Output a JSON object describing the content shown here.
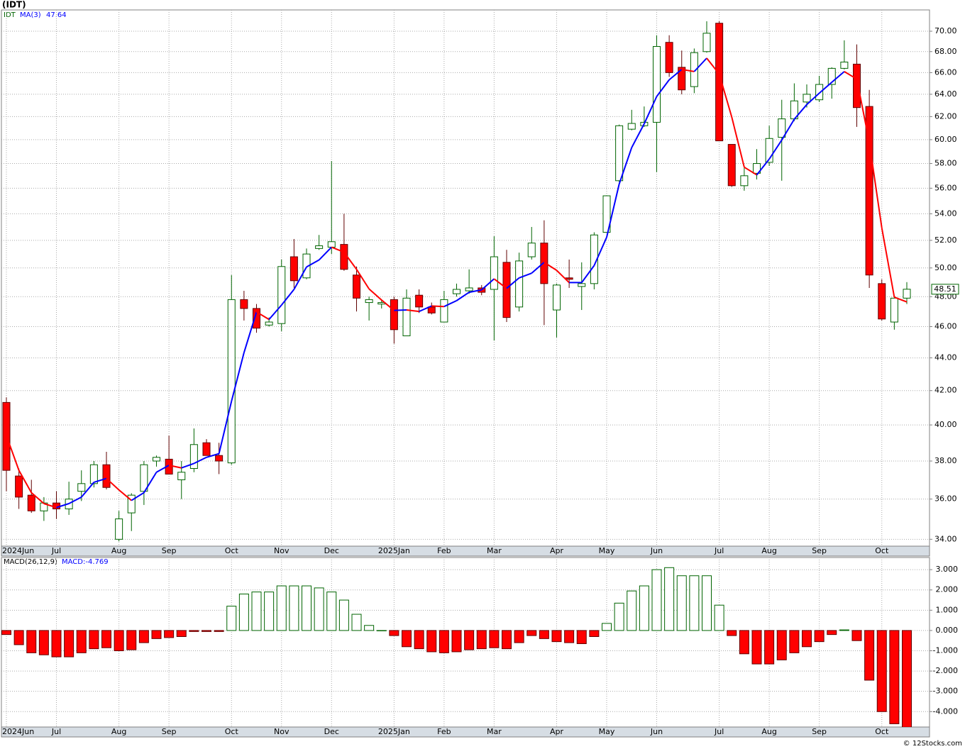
{
  "chart_data": [
    {
      "type": "candlestick",
      "title": "(IDT)",
      "symbol": "IDT",
      "up_color": "#006400",
      "down_color": "#ff0000",
      "log_scale": true,
      "grid": true,
      "ylim": [
        33.67,
        72.15
      ],
      "yticks": [
        {
          "value": 34,
          "label": "34.00"
        },
        {
          "value": 36,
          "label": "36.00"
        },
        {
          "value": 38,
          "label": "38.00"
        },
        {
          "value": 40,
          "label": "40.00"
        },
        {
          "value": 42,
          "label": "42.00"
        },
        {
          "value": 44,
          "label": "44.00"
        },
        {
          "value": 46,
          "label": "46.00"
        },
        {
          "value": 48,
          "label": "48.00"
        },
        {
          "value": 50,
          "label": "50.00"
        },
        {
          "value": 52,
          "label": "52.00"
        },
        {
          "value": 54,
          "label": "54.00"
        },
        {
          "value": 56,
          "label": "56.00"
        },
        {
          "value": 58,
          "label": "58.00"
        },
        {
          "value": 60,
          "label": "60.00"
        },
        {
          "value": 62,
          "label": "62.00"
        },
        {
          "value": 64,
          "label": "64.00"
        },
        {
          "value": 66,
          "label": "66.00"
        },
        {
          "value": 68,
          "label": "68.00"
        },
        {
          "value": 70,
          "label": "70.00"
        }
      ],
      "xticks": [
        {
          "value": 0,
          "label": "2024Jun"
        },
        {
          "value": 4,
          "label": "Jul"
        },
        {
          "value": 9,
          "label": "Aug"
        },
        {
          "value": 13,
          "label": "Sep"
        },
        {
          "value": 18,
          "label": "Oct"
        },
        {
          "value": 22,
          "label": "Nov"
        },
        {
          "value": 26,
          "label": "Dec"
        },
        {
          "value": 31,
          "label": "2025Jan"
        },
        {
          "value": 35,
          "label": "Feb"
        },
        {
          "value": 39,
          "label": "Mar"
        },
        {
          "value": 44,
          "label": "Apr"
        },
        {
          "value": 48,
          "label": "May"
        },
        {
          "value": 52,
          "label": "Jun"
        },
        {
          "value": 57,
          "label": "Jul"
        },
        {
          "value": 61,
          "label": "Aug"
        },
        {
          "value": 65,
          "label": "Sep"
        },
        {
          "value": 70,
          "label": "Oct"
        }
      ],
      "open": [
        41.3,
        37.2,
        36.2,
        35.4,
        35.8,
        35.5,
        36.4,
        36.8,
        37.8,
        34.0,
        35.3,
        36.4,
        38.0,
        38.1,
        37.0,
        37.6,
        39.0,
        38.3,
        37.9,
        47.8,
        47.2,
        46.1,
        46.2,
        50.8,
        49.3,
        51.4,
        51.5,
        51.7,
        49.5,
        47.6,
        47.5,
        47.8,
        45.4,
        48.1,
        47.3,
        46.3,
        48.2,
        48.4,
        48.6,
        48.5,
        50.4,
        47.3,
        50.8,
        51.8,
        47.1,
        49.3,
        48.7,
        48.9,
        52.6,
        56.6,
        60.9,
        61.2,
        61.5,
        68.9,
        66.5,
        64.7,
        68.0,
        70.8,
        59.6,
        56.2,
        57.2,
        58.1,
        60.2,
        61.8,
        63.3,
        63.5,
        64.9,
        66.4,
        66.8,
        62.9,
        48.9,
        46.3,
        47.9
      ],
      "high": [
        41.6,
        37.6,
        37.0,
        36.1,
        36.4,
        36.9,
        37.5,
        38.0,
        38.5,
        35.4,
        36.3,
        38.0,
        38.3,
        39.4,
        38.0,
        39.8,
        39.2,
        39.0,
        49.5,
        48.4,
        47.5,
        46.6,
        50.6,
        52.1,
        51.4,
        52.4,
        58.2,
        54.0,
        50.1,
        48.0,
        47.8,
        48.0,
        48.5,
        48.5,
        47.6,
        48.4,
        48.9,
        49.9,
        48.8,
        52.3,
        51.3,
        51.1,
        53.0,
        53.5,
        48.9,
        50.6,
        50.4,
        52.6,
        55.4,
        61.3,
        62.6,
        62.9,
        69.6,
        69.6,
        68.1,
        68.3,
        71.0,
        71.0,
        59.6,
        57.7,
        59.2,
        61.2,
        63.5,
        65.0,
        64.9,
        65.7,
        66.5,
        69.1,
        68.7,
        64.4,
        49.2,
        48.0,
        49.0
      ],
      "low": [
        36.4,
        35.5,
        35.3,
        34.9,
        35.0,
        35.2,
        35.9,
        36.6,
        36.5,
        33.9,
        34.4,
        35.7,
        37.7,
        37.3,
        36.0,
        37.4,
        38.3,
        37.3,
        37.8,
        46.4,
        45.6,
        46.0,
        45.7,
        48.6,
        49.2,
        51.3,
        51.0,
        49.8,
        47.0,
        46.4,
        47.2,
        44.9,
        45.4,
        46.9,
        46.8,
        46.3,
        48.0,
        48.2,
        48.1,
        45.1,
        46.3,
        47.0,
        50.6,
        46.1,
        45.3,
        48.6,
        47.1,
        48.5,
        52.6,
        56.5,
        60.8,
        61.1,
        57.3,
        65.6,
        64.0,
        64.1,
        67.9,
        59.9,
        56.1,
        55.8,
        56.7,
        57.8,
        56.6,
        61.6,
        62.8,
        63.3,
        63.6,
        66.3,
        61.1,
        48.6,
        46.4,
        45.8,
        47.5
      ],
      "close": [
        37.5,
        36.1,
        35.4,
        35.8,
        35.5,
        36.0,
        36.8,
        37.8,
        36.6,
        35.0,
        36.2,
        37.8,
        38.2,
        37.3,
        37.4,
        38.9,
        38.3,
        38.0,
        47.8,
        47.2,
        45.9,
        46.3,
        50.1,
        49.1,
        51.0,
        51.6,
        51.9,
        49.9,
        47.9,
        47.8,
        47.6,
        45.8,
        47.9,
        47.3,
        46.9,
        47.8,
        48.5,
        48.6,
        48.3,
        50.8,
        46.6,
        50.5,
        51.8,
        48.9,
        48.8,
        49.2,
        48.9,
        52.4,
        55.4,
        61.2,
        61.4,
        61.5,
        68.5,
        66.0,
        64.4,
        67.9,
        69.8,
        59.9,
        56.2,
        57.0,
        58.0,
        60.1,
        61.8,
        63.4,
        64.0,
        64.9,
        66.4,
        67.0,
        62.8,
        49.5,
        46.5,
        47.9,
        48.51
      ],
      "series": [
        {
          "name": "MA(3)",
          "color": "#0000ff",
          "down_color": "#ff0000",
          "values": [
            39.4,
            37.5,
            36.33,
            35.77,
            35.57,
            35.77,
            36.1,
            36.87,
            37.07,
            36.47,
            35.93,
            36.33,
            37.4,
            37.77,
            37.63,
            37.87,
            38.2,
            38.4,
            41.37,
            44.33,
            46.97,
            46.47,
            47.43,
            48.5,
            50.07,
            50.57,
            51.5,
            51.13,
            49.9,
            48.53,
            47.77,
            47.07,
            47.1,
            47.0,
            47.37,
            47.33,
            47.73,
            48.3,
            48.47,
            49.23,
            48.57,
            49.3,
            49.63,
            50.4,
            49.83,
            48.97,
            48.97,
            50.17,
            52.23,
            56.33,
            59.33,
            61.37,
            63.8,
            65.33,
            66.3,
            66.1,
            67.37,
            65.87,
            61.97,
            57.7,
            57.07,
            58.37,
            59.97,
            61.77,
            63.07,
            64.1,
            65.1,
            66.1,
            65.4,
            59.77,
            52.93,
            47.97,
            47.64
          ]
        }
      ]
    },
    {
      "type": "bar",
      "name": "MACD(26,12,9)",
      "value_name": "MACD:",
      "up_color": "#006400",
      "down_color": "#ff0000",
      "grid": true,
      "ylim": [
        -4.76,
        3.6
      ],
      "yticks": [
        {
          "value": 3,
          "label": "3.000"
        },
        {
          "value": 2,
          "label": "2.000"
        },
        {
          "value": 1,
          "label": "1.000"
        },
        {
          "value": 0,
          "label": "0.000"
        },
        {
          "value": -1,
          "label": "-1.000"
        },
        {
          "value": -2,
          "label": "-2.000"
        },
        {
          "value": -3,
          "label": "-3.000"
        },
        {
          "value": -4,
          "label": "-4.000"
        }
      ],
      "values": [
        -0.2,
        -0.7,
        -1.1,
        -1.2,
        -1.3,
        -1.3,
        -1.1,
        -0.9,
        -0.85,
        -1.0,
        -0.95,
        -0.6,
        -0.4,
        -0.35,
        -0.3,
        -0.05,
        -0.05,
        -0.05,
        1.2,
        1.8,
        1.9,
        1.9,
        2.2,
        2.2,
        2.2,
        2.1,
        1.9,
        1.5,
        0.8,
        0.25,
        0,
        -0.25,
        -0.8,
        -0.9,
        -1.05,
        -1.1,
        -1.05,
        -0.95,
        -0.9,
        -0.85,
        -0.9,
        -0.6,
        -0.25,
        -0.4,
        -0.55,
        -0.6,
        -0.65,
        -0.3,
        0.35,
        1.35,
        1.95,
        2.2,
        3.0,
        3.1,
        2.7,
        2.7,
        2.7,
        1.25,
        -0.25,
        -1.15,
        -1.65,
        -1.65,
        -1.45,
        -1.1,
        -0.8,
        -0.55,
        -0.2,
        0.03,
        -0.5,
        -2.45,
        -4.0,
        -4.6,
        -4.769
      ]
    }
  ],
  "footer": "© 12Stocks.com"
}
